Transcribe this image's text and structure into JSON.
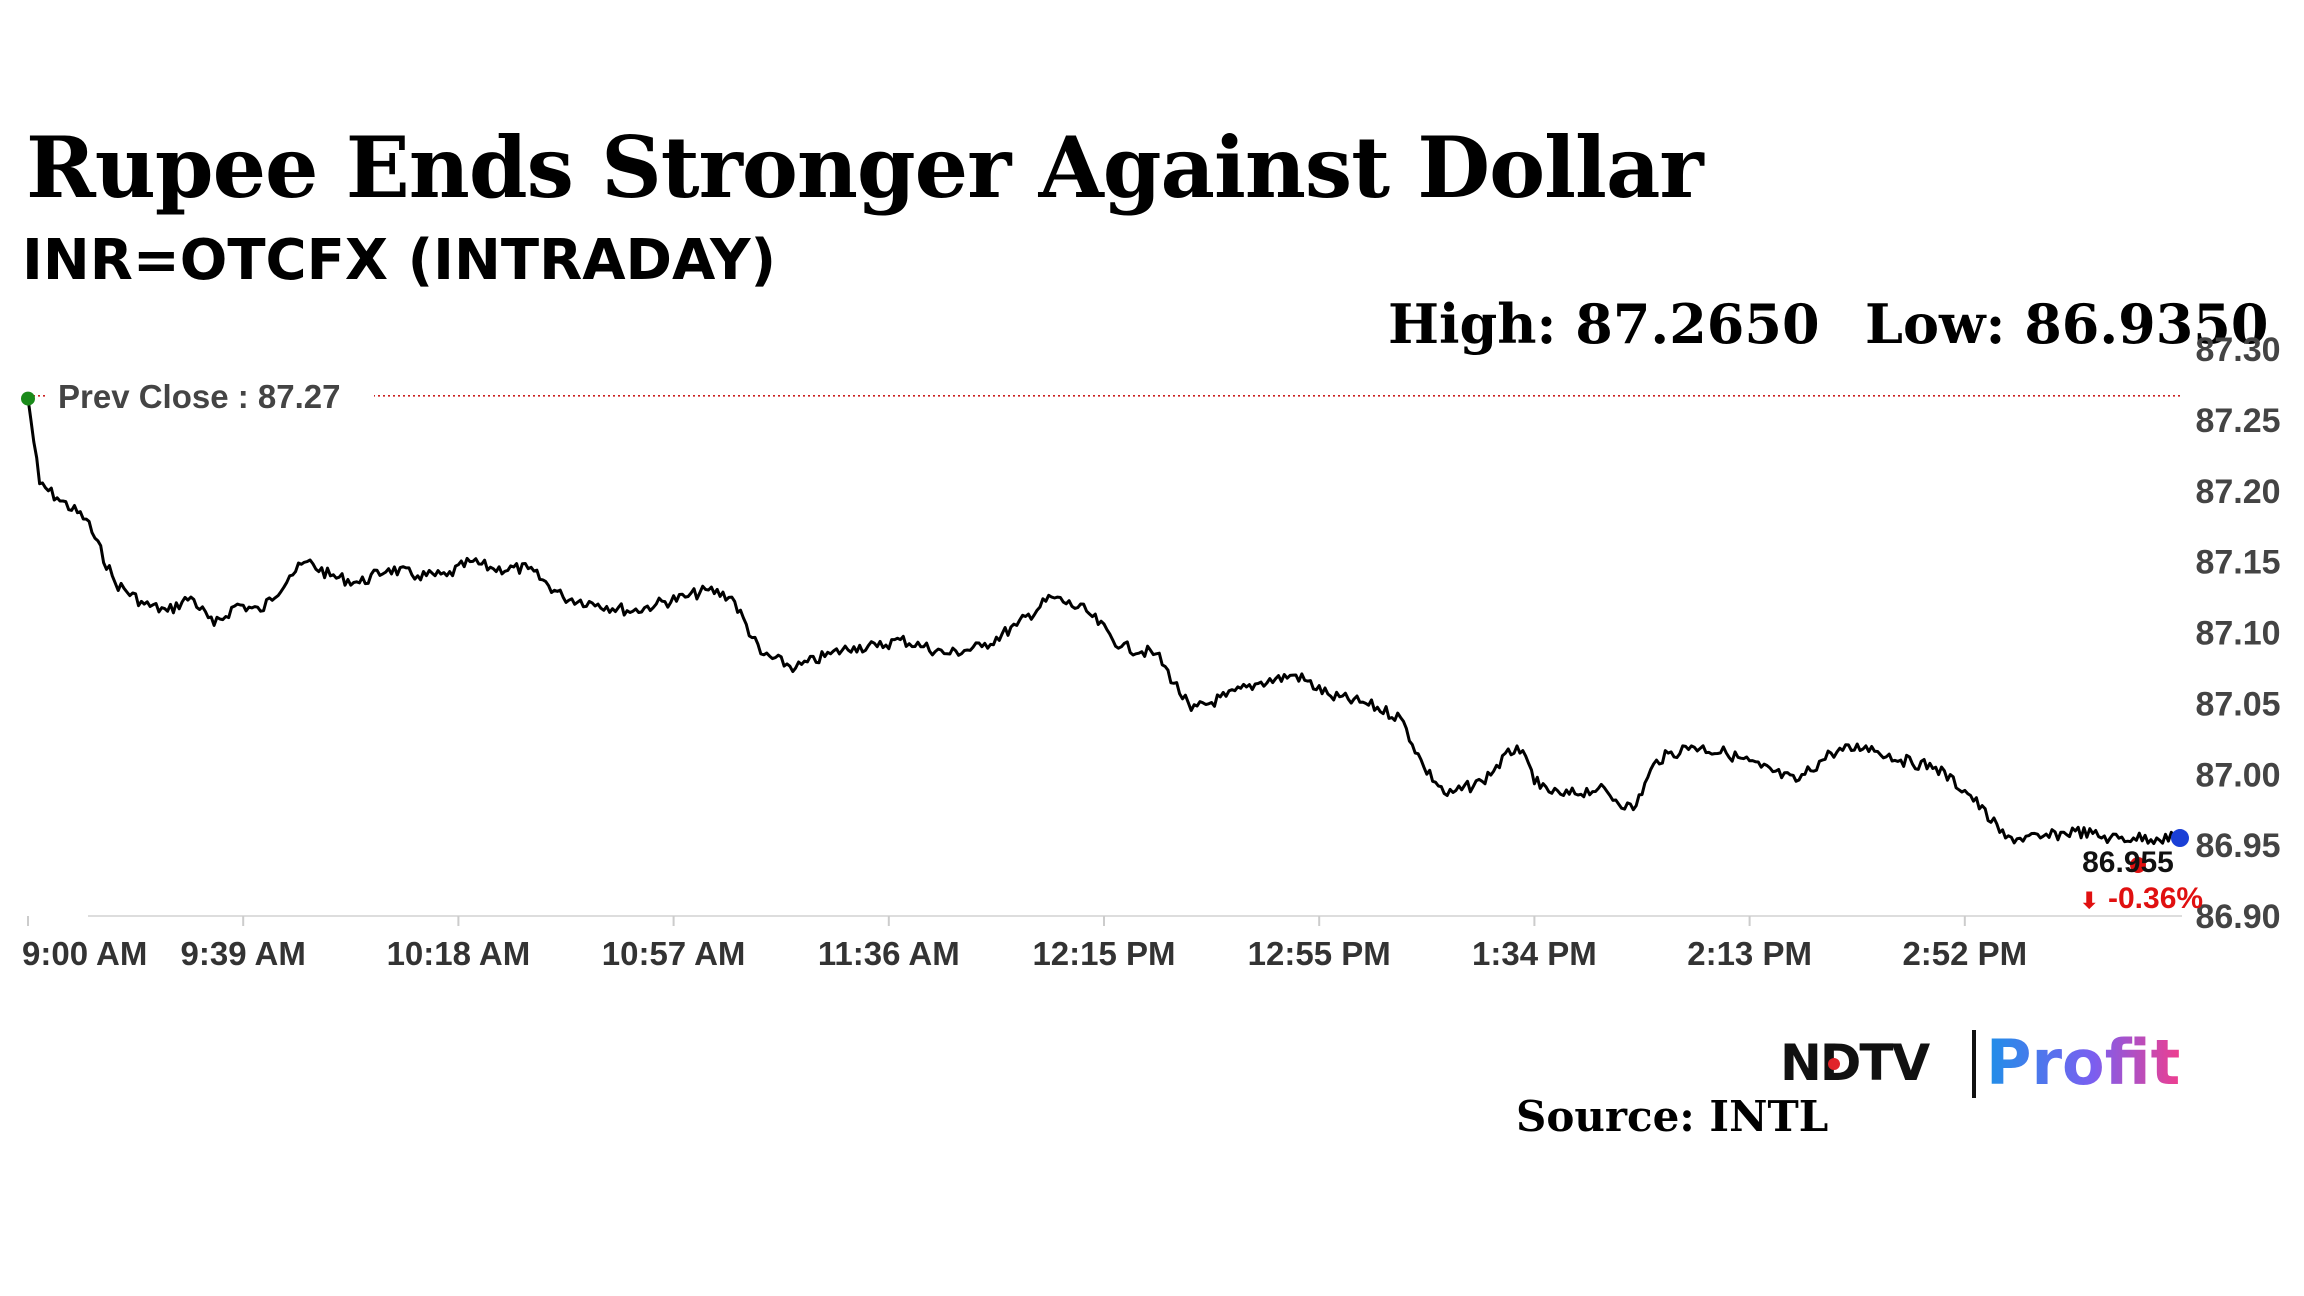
{
  "header": {
    "title": "Rupee Ends Stronger Against Dollar",
    "subtitle": "INR=OTCFX (INTRADAY)",
    "high": "High: 87.2650",
    "low": "Low: 86.9350"
  },
  "footer": {
    "brand_ndtv": "NDTV",
    "brand_profit": "Profit",
    "source": "Source: INTL"
  },
  "colors": {
    "line": "#000000",
    "prev_close_line": "#cc2222",
    "prev_close_dot": "#1a8a1a",
    "change_negative": "#e01010",
    "last_dot": "#1a3fd6",
    "axis": "#dddddd"
  },
  "chart_data": {
    "type": "line",
    "xlabel": "",
    "ylabel": "",
    "x_ticks": [
      "9:00 AM",
      "9:39 AM",
      "10:18 AM",
      "10:57 AM",
      "11:36 AM",
      "12:15 PM",
      "12:55 PM",
      "1:34 PM",
      "2:13 PM",
      "2:52 PM"
    ],
    "y_ticks": [
      "87.30",
      "87.25",
      "87.20",
      "87.15",
      "87.10",
      "87.05",
      "87.00",
      "86.95",
      "86.90"
    ],
    "ylim": [
      86.9,
      87.3
    ],
    "grid": false,
    "prev_close": {
      "label": "Prev Close : 87.27",
      "value": 87.267
    },
    "last": {
      "label": "86.955",
      "change": "-0.36%",
      "value": 86.955
    },
    "series": [
      {
        "x": [
          "9:00 AM",
          "9:02 AM",
          "9:05 AM",
          "9:10 AM",
          "9:15 AM",
          "9:20 AM",
          "9:24 AM",
          "9:28 AM",
          "9:32 AM",
          "9:36 AM",
          "9:40 AM",
          "9:45 AM",
          "9:48 AM",
          "9:52 AM",
          "9:57 AM",
          "10:02 AM",
          "10:07 AM",
          "10:12 AM",
          "10:16 AM",
          "10:20 AM",
          "10:26 AM",
          "10:32 AM",
          "10:38 AM",
          "10:44 AM",
          "10:48 AM",
          "10:53 AM",
          "10:57 AM",
          "11:01 AM",
          "11:06 AM",
          "11:12 AM",
          "11:18 AM",
          "11:22 AM",
          "11:26 AM",
          "11:30 AM",
          "11:34 AM",
          "11:38 AM",
          "11:44 AM",
          "11:50 AM",
          "11:56 AM",
          "12:02 PM",
          "12:08 PM",
          "12:14 PM",
          "12:20 PM",
          "12:26 PM",
          "12:32 PM",
          "12:38 PM",
          "12:44 PM",
          "12:50 PM",
          "12:56 PM",
          "1:00 PM",
          "1:04 PM",
          "1:10 PM",
          "1:16 PM",
          "1:20 PM",
          "1:24 PM",
          "1:30 PM",
          "1:36 PM",
          "1:40 PM",
          "1:46 PM",
          "1:52 PM",
          "1:58 PM",
          "2:04 PM",
          "2:10 PM",
          "2:16 PM",
          "2:22 PM",
          "2:28 PM",
          "2:34 PM",
          "2:40 PM",
          "2:46 PM",
          "2:52 PM",
          "2:58 PM",
          "3:02 PM",
          "3:06 PM",
          "3:10 PM"
        ],
        "values": [
          87.265,
          87.205,
          87.195,
          87.18,
          87.135,
          87.12,
          87.115,
          87.125,
          87.105,
          87.12,
          87.115,
          87.14,
          87.15,
          87.14,
          87.135,
          87.145,
          87.14,
          87.14,
          87.15,
          87.145,
          87.145,
          87.125,
          87.12,
          87.115,
          87.12,
          87.125,
          87.13,
          87.125,
          87.085,
          87.075,
          87.085,
          87.09,
          87.09,
          87.095,
          87.09,
          87.085,
          87.09,
          87.105,
          87.125,
          87.115,
          87.09,
          87.085,
          87.045,
          87.055,
          87.065,
          87.07,
          87.055,
          87.05,
          87.04,
          87.005,
          86.985,
          86.995,
          87.02,
          86.99,
          86.985,
          86.99,
          86.975,
          87.01,
          87.02,
          87.015,
          87.005,
          86.995,
          87.015,
          87.02,
          87.01,
          87.005,
          86.985,
          86.955,
          86.955,
          86.96,
          86.955,
          86.955,
          86.955,
          86.955
        ]
      }
    ]
  }
}
